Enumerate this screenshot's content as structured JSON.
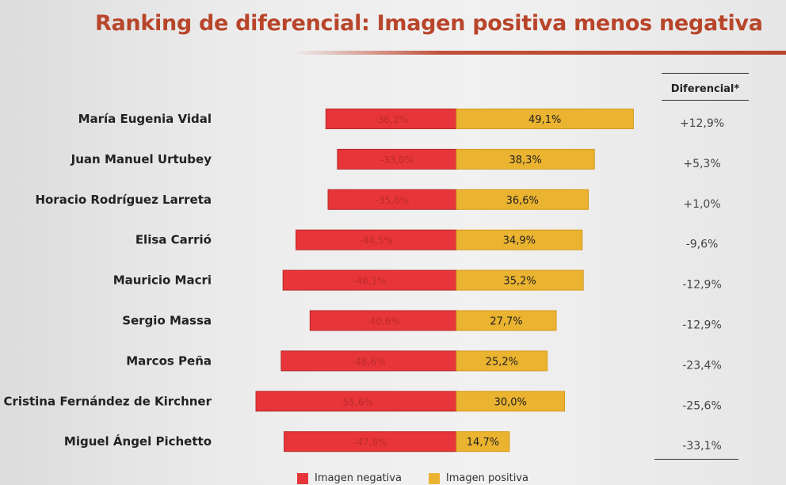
{
  "chart_data": {
    "type": "bar",
    "orientation": "horizontal-diverging",
    "title": "Ranking de diferencial: Imagen positiva menos negativa",
    "diff_header": "Diferencial*",
    "categories": [
      "María Eugenia Vidal",
      "Juan Manuel Urtubey",
      "Horacio Rodríguez Larreta",
      "Elisa Carrió",
      "Mauricio Macri",
      "Sergio Massa",
      "Marcos Peña",
      "Cristina Fernández de Kirchner",
      "Miguel Ángel Pichetto"
    ],
    "series": [
      {
        "name": "Imagen negativa",
        "color": "#e8353a",
        "values": [
          -36.2,
          -33.0,
          -35.6,
          -44.5,
          -48.1,
          -40.6,
          -48.6,
          -55.6,
          -47.8
        ],
        "labels": [
          "-36,2%",
          "-33,0%",
          "-35,6%",
          "-44,5%",
          "-48,1%",
          "-40,6%",
          "-48,6%",
          "-55,6%",
          "-47,8%"
        ]
      },
      {
        "name": "Imagen positiva",
        "color": "#eab330",
        "values": [
          49.1,
          38.3,
          36.6,
          34.9,
          35.2,
          27.7,
          25.2,
          30.0,
          14.7
        ],
        "labels": [
          "49,1%",
          "38,3%",
          "36,6%",
          "34,9%",
          "35,2%",
          "27,7%",
          "25,2%",
          "30,0%",
          "14,7%"
        ]
      }
    ],
    "differential": [
      12.9,
      5.3,
      1.0,
      -9.6,
      -12.9,
      -12.9,
      -23.4,
      -25.6,
      -33.1
    ],
    "differential_labels": [
      "+12,9%",
      "+5,3%",
      "+1,0%",
      "-9,6%",
      "-12,9%",
      "-12,9%",
      "-23,4%",
      "-25,6%",
      "-33,1%"
    ],
    "legend_position": "bottom"
  }
}
